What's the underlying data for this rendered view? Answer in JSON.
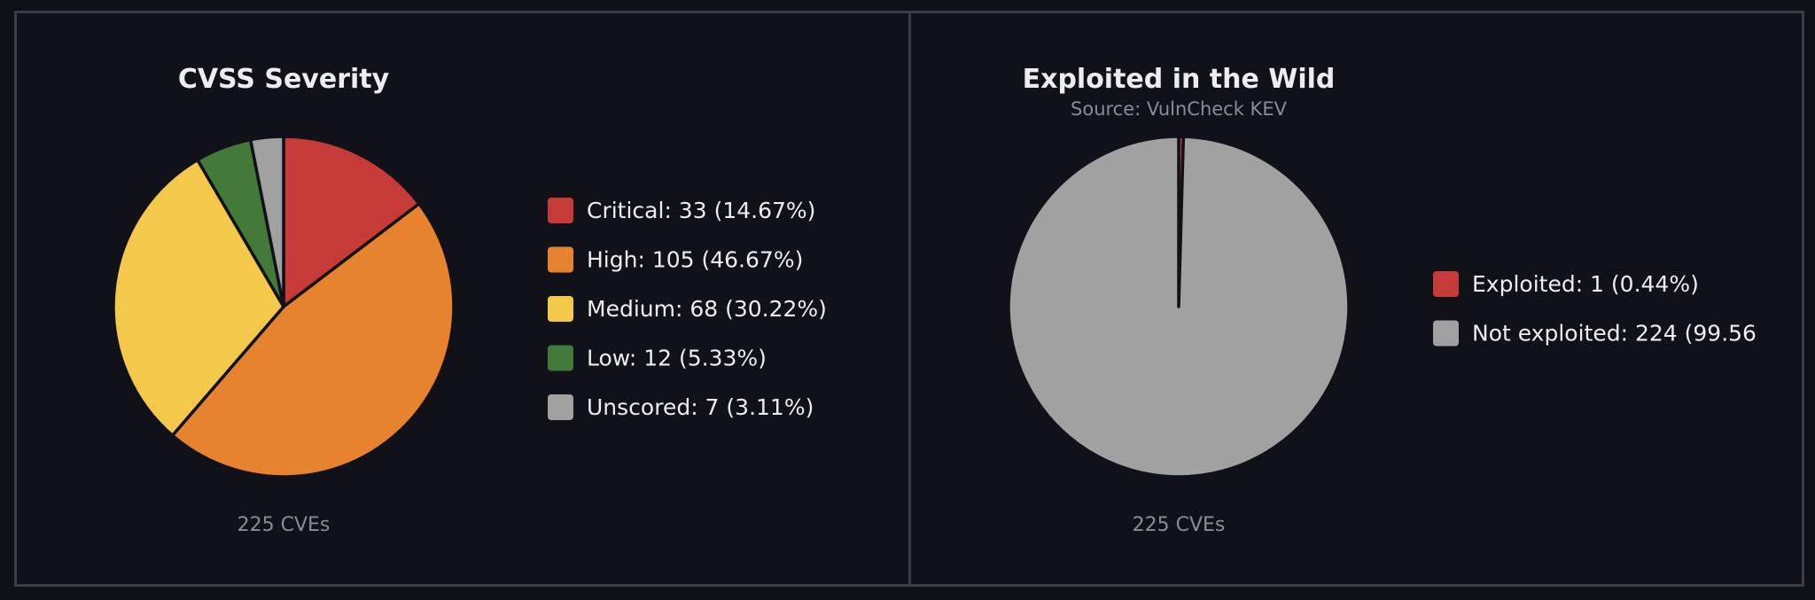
{
  "chart_data": [
    {
      "type": "pie",
      "title": "CVSS Severity",
      "subtitle": "",
      "footer": "225 CVEs",
      "legend_position": "right",
      "slices": [
        {
          "label": "Critical: 33 (14.67%)",
          "value": 33,
          "color": "#c63b37"
        },
        {
          "label": "High: 105 (46.67%)",
          "value": 105,
          "color": "#e7822f"
        },
        {
          "label": "Medium: 68 (30.22%)",
          "value": 68,
          "color": "#f3c84b"
        },
        {
          "label": "Low: 12 (5.33%)",
          "value": 12,
          "color": "#447a39"
        },
        {
          "label": "Unscored: 7 (3.11%)",
          "value": 7,
          "color": "#a1a1a1"
        }
      ]
    },
    {
      "type": "pie",
      "title": "Exploited in the Wild",
      "subtitle": "Source: VulnCheck KEV",
      "footer": "225 CVEs",
      "legend_position": "right",
      "slices": [
        {
          "label": "Exploited: 1 (0.44%)",
          "value": 1,
          "color": "#c63b37"
        },
        {
          "label": "Not exploited: 224 (99.56",
          "value": 224,
          "color": "#a1a1a1"
        }
      ]
    }
  ]
}
